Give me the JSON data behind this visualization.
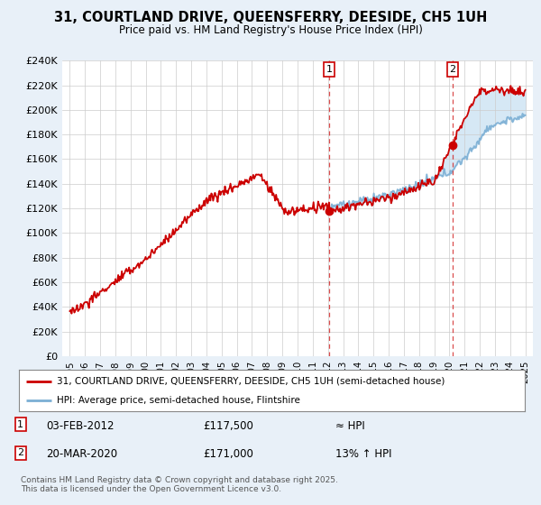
{
  "title": "31, COURTLAND DRIVE, QUEENSFERRY, DEESIDE, CH5 1UH",
  "subtitle": "Price paid vs. HM Land Registry's House Price Index (HPI)",
  "legend_line1": "31, COURTLAND DRIVE, QUEENSFERRY, DEESIDE, CH5 1UH (semi-detached house)",
  "legend_line2": "HPI: Average price, semi-detached house, Flintshire",
  "annotation1_label": "1",
  "annotation1_date": "03-FEB-2012",
  "annotation1_price": "£117,500",
  "annotation1_hpi": "≈ HPI",
  "annotation1_year": 2012.09,
  "annotation1_value": 117500,
  "annotation2_label": "2",
  "annotation2_date": "20-MAR-2020",
  "annotation2_price": "£171,000",
  "annotation2_hpi": "13% ↑ HPI",
  "annotation2_year": 2020.22,
  "annotation2_value": 171000,
  "copyright": "Contains HM Land Registry data © Crown copyright and database right 2025.\nThis data is licensed under the Open Government Licence v3.0.",
  "ylim": [
    0,
    240000
  ],
  "yticks": [
    0,
    20000,
    40000,
    60000,
    80000,
    100000,
    120000,
    140000,
    160000,
    180000,
    200000,
    220000,
    240000
  ],
  "ytick_labels": [
    "£0",
    "£20K",
    "£40K",
    "£60K",
    "£80K",
    "£100K",
    "£120K",
    "£140K",
    "£160K",
    "£180K",
    "£200K",
    "£220K",
    "£240K"
  ],
  "xlim": [
    1994.5,
    2025.5
  ],
  "red_color": "#cc0000",
  "blue_color": "#7bafd4",
  "fill_color": "#d6e8f5",
  "grid_color": "#cccccc",
  "bg_color": "#e8f0f8",
  "plot_bg": "#ffffff",
  "marker_box_color": "#cc0000"
}
